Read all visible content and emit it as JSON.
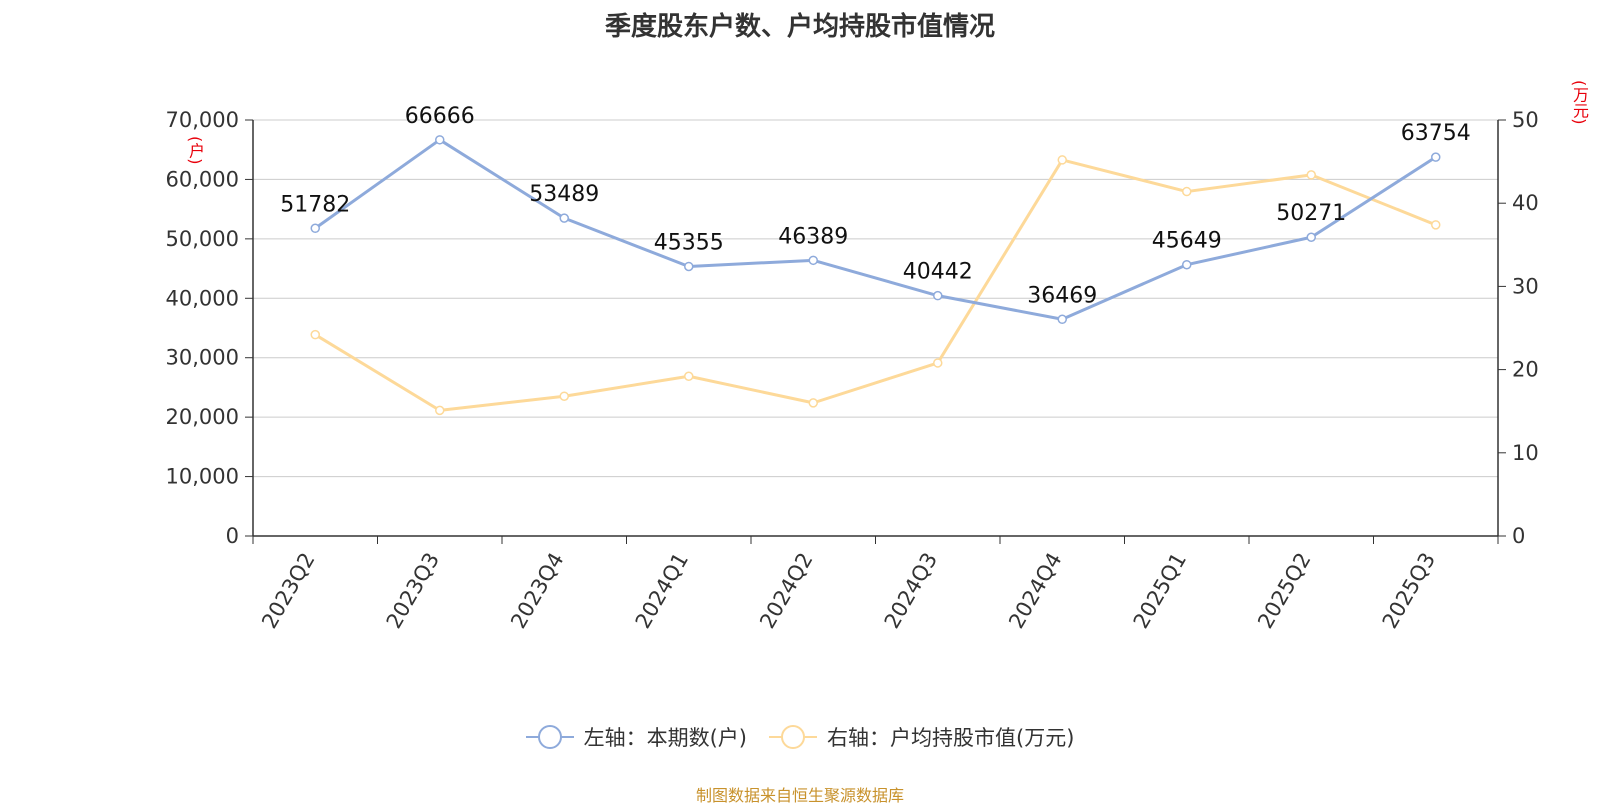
{
  "title": "季度股东户数、户均持股市值情况",
  "left_unit": "(户)",
  "right_unit": "(万元)",
  "source": "制图数据来自恒生聚源数据库",
  "colors": {
    "series1": "#8eaadb",
    "series2": "#fdd999",
    "unit": "#e8000b",
    "source": "#c8922c"
  },
  "chart_data": {
    "type": "line",
    "title": "季度股东户数、户均持股市值情况",
    "categories": [
      "2023Q2",
      "2023Q3",
      "2023Q4",
      "2024Q1",
      "2024Q2",
      "2024Q3",
      "2024Q4",
      "2025Q1",
      "2025Q2",
      "2025Q3"
    ],
    "y_left": {
      "min": 0,
      "max": 70000,
      "step": 10000,
      "ticks": [
        "0",
        "10,000",
        "20,000",
        "30,000",
        "40,000",
        "50,000",
        "60,000",
        "70,000"
      ]
    },
    "y_right": {
      "min": 0,
      "max": 50,
      "step": 10,
      "ticks": [
        "0",
        "10",
        "20",
        "30",
        "40",
        "50"
      ]
    },
    "grid": true,
    "legend_position": "bottom",
    "series": [
      {
        "name": "左轴：本期数(户)",
        "axis": "left",
        "values": [
          51782,
          66666,
          53489,
          45355,
          46389,
          40442,
          36469,
          45649,
          50271,
          63754
        ],
        "labels": [
          "51782",
          "66666",
          "53489",
          "45355",
          "46389",
          "40442",
          "36469",
          "45649",
          "50271",
          "63754"
        ]
      },
      {
        "name": "右轴：户均持股市值(万元)",
        "axis": "right",
        "values": [
          24.2,
          15.1,
          16.8,
          19.2,
          16.0,
          20.8,
          45.2,
          41.4,
          43.4,
          37.4
        ]
      }
    ]
  }
}
